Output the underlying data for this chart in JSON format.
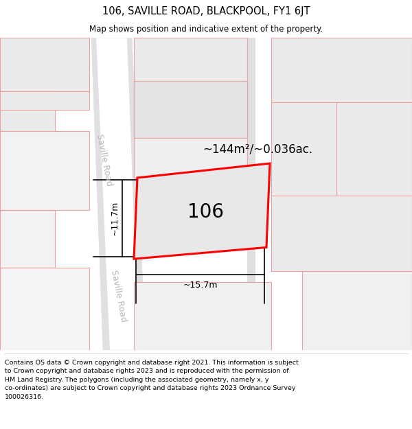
{
  "title": "106, SAVILLE ROAD, BLACKPOOL, FY1 6JT",
  "subtitle": "Map shows position and indicative extent of the property.",
  "footer_lines": [
    "Contains OS data © Crown copyright and database right 2021. This information is subject to Crown copyright and database rights 2023 and is reproduced with the permission of",
    "HM Land Registry. The polygons (including the associated geometry, namely x, y co-ordinates) are subject to Crown copyright and database rights 2023 Ordnance Survey",
    "100026316."
  ],
  "map_bg": "#f7f7f7",
  "cell_color": "#ebebeb",
  "cell_ec": "#f0a0a0",
  "road_color": "#e0e0e0",
  "prop_ec": "#ff0000",
  "prop_fc": "#e8e8e8",
  "area_text": "~144m²/~0.036ac.",
  "number_text": "106",
  "dim_width": "~15.7m",
  "dim_height": "~11.7m",
  "road_label": "Saville Road",
  "road_label_color": "#b8b8b8"
}
